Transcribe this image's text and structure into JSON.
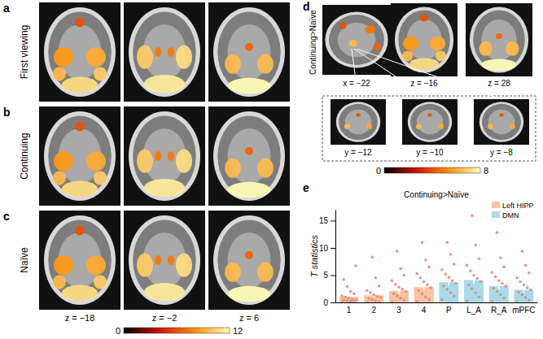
{
  "chart_data": {
    "type": "bar",
    "title": "Continuing>Naïve",
    "y_label": "T statistics",
    "categories": [
      "1",
      "2",
      "3",
      "4",
      "P",
      "L_A",
      "R_A",
      "mPFC"
    ],
    "series": [
      {
        "name": "Left HIPP",
        "color": "#f7c3a0",
        "values": [
          1.0,
          1.3,
          2.1,
          2.8,
          null,
          null,
          null,
          null
        ],
        "errors": [
          0.4,
          0.4,
          0.5,
          0.6,
          null,
          null,
          null,
          null
        ],
        "points": [
          [
            0,
            0.1,
            0.2,
            0.3,
            0.4,
            0.5,
            0.6,
            0.8,
            1.0,
            1.2,
            1.6,
            2.0,
            2.9,
            4.2,
            6.7
          ],
          [
            0,
            0.1,
            0.3,
            0.5,
            0.7,
            0.9,
            1.1,
            1.4,
            1.8,
            2.2,
            3.0,
            4.5,
            8.3
          ],
          [
            0,
            0.4,
            0.8,
            1.2,
            1.6,
            2.0,
            2.4,
            2.8,
            3.3,
            4.0,
            5.0,
            6.2,
            9.4
          ],
          [
            0.1,
            0.5,
            1.0,
            1.6,
            2.2,
            2.7,
            3.2,
            3.8,
            4.5,
            5.3,
            6.5,
            7.8,
            11.0
          ],
          null,
          null,
          null,
          null
        ]
      },
      {
        "name": "DMN",
        "color": "#a8dbe8",
        "values": [
          null,
          null,
          null,
          null,
          3.7,
          4.1,
          3.0,
          2.3
        ],
        "errors": [
          null,
          null,
          null,
          null,
          0.6,
          0.7,
          0.6,
          0.5
        ],
        "points": [
          null,
          null,
          null,
          null,
          [
            0.5,
            1.2,
            1.8,
            2.4,
            3.0,
            3.5,
            4.0,
            4.6,
            5.2,
            6.0,
            7.0,
            8.8,
            11.0
          ],
          [
            0.3,
            1.0,
            1.8,
            2.5,
            3.2,
            3.8,
            4.4,
            5.0,
            5.8,
            6.8,
            8.0,
            10.5,
            15.9
          ],
          [
            0.2,
            0.8,
            1.4,
            2.0,
            2.6,
            3.0,
            3.5,
            4.0,
            4.7,
            5.5,
            6.5,
            8.2,
            12.8
          ],
          [
            0,
            0.4,
            0.9,
            1.4,
            1.9,
            2.3,
            2.7,
            3.2,
            3.8,
            4.5,
            5.4,
            6.8,
            9.4
          ]
        ]
      }
    ],
    "ylim": [
      0,
      17
    ],
    "yticks": [
      0,
      5,
      10,
      15
    ],
    "legend": "upper right",
    "grid": false
  },
  "panel_letters": [
    "a",
    "b",
    "c",
    "d",
    "e"
  ],
  "brain_rows": [
    "First viewing",
    "Continuing",
    "Naïve"
  ],
  "slice_labels": [
    "z = −18",
    "z = −2",
    "z = 6"
  ],
  "colorbar": {
    "range": [
      0,
      12
    ],
    "ticks": [
      0,
      12
    ]
  },
  "panel_d": {
    "label": "Continuing>Naïve",
    "top_labels": [
      "x = −22",
      "z = −16",
      "z = 28"
    ],
    "inset_labels": [
      "y = −12",
      "y = −10",
      "y = −8"
    ],
    "colorbar": {
      "range": [
        0,
        8
      ],
      "ticks": [
        0,
        8
      ]
    }
  }
}
